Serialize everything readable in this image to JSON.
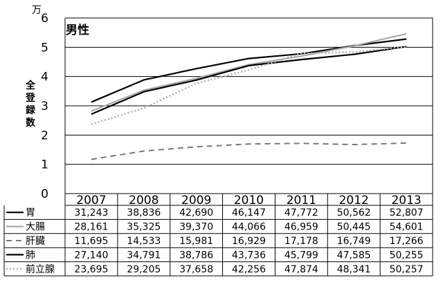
{
  "chart_data": {
    "type": "line",
    "title": "男性",
    "unit": "万",
    "ylabel": "全登録数",
    "ylim": [
      0,
      6
    ],
    "yticks": [
      "0",
      "1",
      "2",
      "3",
      "4",
      "5",
      "6"
    ],
    "grid": true,
    "categories": [
      "2007",
      "2008",
      "2009",
      "2010",
      "2011",
      "2012",
      "2013"
    ],
    "series": [
      {
        "name": "胃",
        "style": "solid",
        "color": "#000000",
        "width": 2.2,
        "values": [
          31243,
          38836,
          42690,
          46147,
          47772,
          50562,
          52807
        ],
        "labels": [
          "31,243",
          "38,836",
          "42,690",
          "46,147",
          "47,772",
          "50,562",
          "52,807"
        ]
      },
      {
        "name": "大腸",
        "style": "solid",
        "color": "#aaaaaa",
        "width": 2.2,
        "values": [
          28161,
          35325,
          39370,
          44066,
          46959,
          50445,
          54601
        ],
        "labels": [
          "28,161",
          "35,325",
          "39,370",
          "44,066",
          "46,959",
          "50,445",
          "54,601"
        ]
      },
      {
        "name": "肝臓",
        "style": "dashed",
        "color": "#777777",
        "width": 2,
        "values": [
          11695,
          14533,
          15981,
          16929,
          17178,
          16749,
          17266
        ],
        "labels": [
          "11,695",
          "14,533",
          "15,981",
          "16,929",
          "17,178",
          "16,749",
          "17,266"
        ]
      },
      {
        "name": "肺",
        "style": "solid",
        "color": "#000000",
        "width": 2.2,
        "values": [
          27140,
          34791,
          38786,
          43736,
          45799,
          47585,
          50255
        ],
        "labels": [
          "27,140",
          "34,791",
          "38,786",
          "43,736",
          "45,799",
          "47,585",
          "50,255"
        ]
      },
      {
        "name": "前立腺",
        "style": "dotted",
        "color": "#b0b0b0",
        "width": 2.6,
        "values": [
          23695,
          29205,
          37658,
          42256,
          47874,
          48341,
          50257
        ],
        "labels": [
          "23,695",
          "29,205",
          "37,658",
          "42,256",
          "47,874",
          "48,341",
          "50,257"
        ]
      }
    ]
  }
}
